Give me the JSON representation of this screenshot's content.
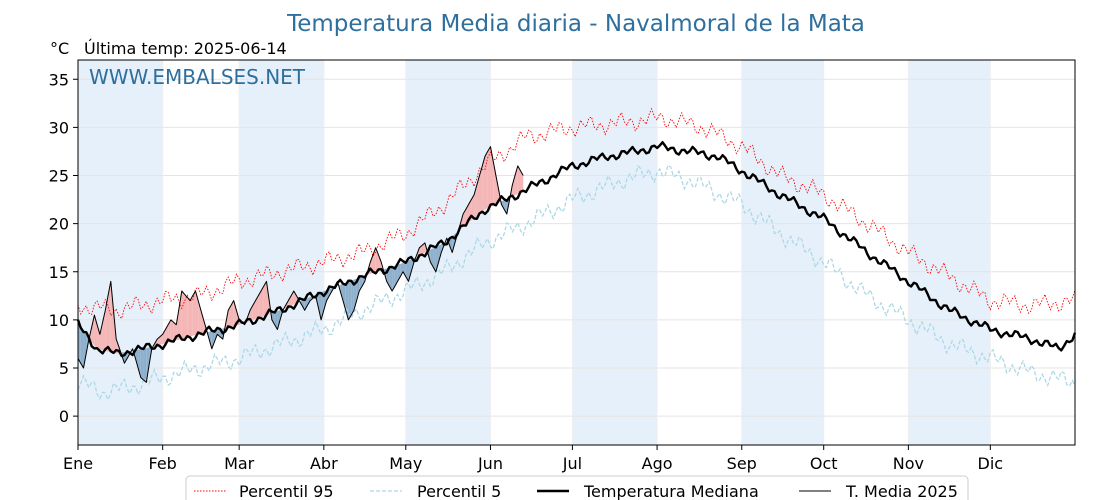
{
  "chart_data": {
    "type": "line",
    "title": "Temperatura Media diaria - Navalmoral de la Mata",
    "unit": "°C",
    "last_temp_label": "Última temp: 2025-06-14",
    "watermark": "WWW.EMBALSES.NET",
    "ylim": [
      -3,
      37
    ],
    "yticks": [
      0,
      5,
      10,
      15,
      20,
      25,
      30,
      35
    ],
    "xlim_days": [
      1,
      366
    ],
    "months": [
      "Ene",
      "Feb",
      "Mar",
      "Abr",
      "May",
      "Jun",
      "Jul",
      "Ago",
      "Sep",
      "Oct",
      "Nov",
      "Dic"
    ],
    "month_start_days": [
      1,
      32,
      60,
      91,
      121,
      152,
      182,
      213,
      244,
      274,
      305,
      335
    ],
    "grid": true,
    "legend_position": "bottom",
    "colors": {
      "p95": "#ff0000",
      "p5": "#add8e6",
      "median": "#000000",
      "current": "#000000",
      "above_fill": "#f4b6b6",
      "below_fill": "#8fb0cc",
      "shade": "#e6f0fa",
      "title": "#2e6f9e"
    },
    "series": [
      {
        "name": "Percentil 95",
        "style": "dotted",
        "knots": [
          [
            1,
            11.5
          ],
          [
            15,
            11
          ],
          [
            32,
            12
          ],
          [
            45,
            12.5
          ],
          [
            60,
            14
          ],
          [
            75,
            15
          ],
          [
            91,
            16
          ],
          [
            105,
            17
          ],
          [
            121,
            19
          ],
          [
            135,
            22
          ],
          [
            150,
            26
          ],
          [
            165,
            29
          ],
          [
            182,
            30
          ],
          [
            200,
            30.5
          ],
          [
            215,
            31
          ],
          [
            230,
            30
          ],
          [
            244,
            28
          ],
          [
            258,
            25
          ],
          [
            274,
            23
          ],
          [
            290,
            20
          ],
          [
            305,
            17
          ],
          [
            320,
            14.5
          ],
          [
            335,
            12
          ],
          [
            350,
            11.5
          ],
          [
            366,
            12
          ]
        ]
      },
      {
        "name": "Percentil 5",
        "style": "dashed",
        "knots": [
          [
            1,
            3.5
          ],
          [
            10,
            2.5
          ],
          [
            20,
            3
          ],
          [
            32,
            4
          ],
          [
            45,
            5
          ],
          [
            60,
            6
          ],
          [
            75,
            7.5
          ],
          [
            91,
            9
          ],
          [
            105,
            11
          ],
          [
            121,
            13
          ],
          [
            135,
            15
          ],
          [
            150,
            18
          ],
          [
            165,
            20
          ],
          [
            182,
            22.5
          ],
          [
            200,
            24.5
          ],
          [
            213,
            25.5
          ],
          [
            225,
            24.5
          ],
          [
            244,
            22
          ],
          [
            258,
            19
          ],
          [
            274,
            16
          ],
          [
            290,
            12.5
          ],
          [
            305,
            10
          ],
          [
            320,
            7.5
          ],
          [
            335,
            6
          ],
          [
            350,
            4.5
          ],
          [
            366,
            3.5
          ]
        ]
      },
      {
        "name": "Temperatura Mediana",
        "style": "solid-thick",
        "knots": [
          [
            1,
            9.5
          ],
          [
            8,
            7
          ],
          [
            15,
            6.5
          ],
          [
            25,
            7
          ],
          [
            32,
            7.5
          ],
          [
            45,
            8.5
          ],
          [
            60,
            9.5
          ],
          [
            75,
            11
          ],
          [
            91,
            13
          ],
          [
            105,
            14.5
          ],
          [
            121,
            16
          ],
          [
            135,
            18
          ],
          [
            150,
            21.5
          ],
          [
            165,
            23.5
          ],
          [
            182,
            26
          ],
          [
            195,
            27
          ],
          [
            205,
            27.5
          ],
          [
            213,
            28
          ],
          [
            225,
            27.5
          ],
          [
            235,
            27
          ],
          [
            244,
            25.5
          ],
          [
            258,
            23
          ],
          [
            274,
            20.5
          ],
          [
            290,
            17
          ],
          [
            305,
            14
          ],
          [
            320,
            11
          ],
          [
            335,
            9
          ],
          [
            350,
            8
          ],
          [
            360,
            7
          ],
          [
            366,
            8.5
          ]
        ]
      },
      {
        "name": "T. Media 2025",
        "style": "solid-thin",
        "knots": [
          [
            1,
            6
          ],
          [
            3,
            5
          ],
          [
            5,
            8
          ],
          [
            7,
            10.5
          ],
          [
            9,
            8.5
          ],
          [
            11,
            11
          ],
          [
            13,
            14
          ],
          [
            15,
            8
          ],
          [
            18,
            5.5
          ],
          [
            21,
            7
          ],
          [
            24,
            4
          ],
          [
            26,
            3.5
          ],
          [
            28,
            7
          ],
          [
            30,
            8
          ],
          [
            32,
            8.5
          ],
          [
            35,
            10
          ],
          [
            37,
            9.5
          ],
          [
            39,
            13
          ],
          [
            42,
            12
          ],
          [
            44,
            13
          ],
          [
            46,
            11
          ],
          [
            48,
            9
          ],
          [
            50,
            7
          ],
          [
            52,
            8.5
          ],
          [
            54,
            8
          ],
          [
            56,
            11
          ],
          [
            58,
            12
          ],
          [
            60,
            10
          ],
          [
            62,
            9.5
          ],
          [
            64,
            11
          ],
          [
            66,
            12
          ],
          [
            68,
            13
          ],
          [
            70,
            14
          ],
          [
            72,
            10
          ],
          [
            74,
            9
          ],
          [
            76,
            11
          ],
          [
            78,
            12
          ],
          [
            80,
            13
          ],
          [
            82,
            12
          ],
          [
            84,
            11
          ],
          [
            86,
            12
          ],
          [
            88,
            12.5
          ],
          [
            90,
            10
          ],
          [
            92,
            12
          ],
          [
            94,
            13
          ],
          [
            96,
            14
          ],
          [
            98,
            12
          ],
          [
            100,
            10
          ],
          [
            102,
            11
          ],
          [
            104,
            13
          ],
          [
            106,
            14
          ],
          [
            108,
            16
          ],
          [
            110,
            17.5
          ],
          [
            112,
            16
          ],
          [
            114,
            14
          ],
          [
            116,
            13
          ],
          [
            118,
            14
          ],
          [
            120,
            15
          ],
          [
            122,
            14
          ],
          [
            124,
            16
          ],
          [
            126,
            17.5
          ],
          [
            128,
            18
          ],
          [
            130,
            16
          ],
          [
            132,
            15
          ],
          [
            134,
            17
          ],
          [
            136,
            18.5
          ],
          [
            138,
            17
          ],
          [
            140,
            19
          ],
          [
            142,
            21
          ],
          [
            144,
            22
          ],
          [
            146,
            23
          ],
          [
            148,
            25
          ],
          [
            150,
            27
          ],
          [
            152,
            28
          ],
          [
            154,
            25
          ],
          [
            156,
            22
          ],
          [
            158,
            21
          ],
          [
            160,
            24
          ],
          [
            162,
            26
          ],
          [
            164,
            25
          ]
        ]
      }
    ]
  },
  "legend": {
    "p95": "Percentil 95",
    "p5": "Percentil 5",
    "median": "Temperatura Mediana",
    "current": "T. Media 2025"
  }
}
